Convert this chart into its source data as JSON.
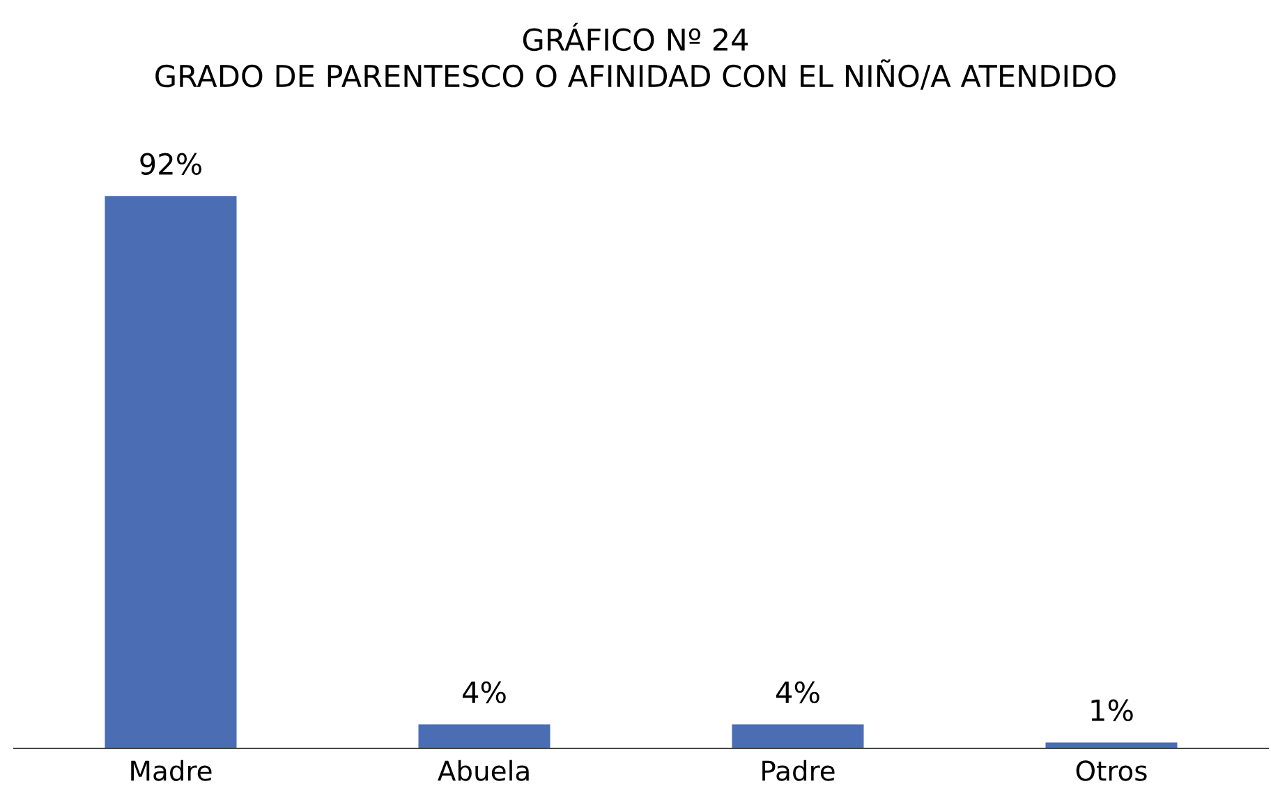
{
  "chart_data": {
    "type": "bar",
    "title": "GRÁFICO Nº 24\nGRADO DE PARENTESCO O AFINIDAD CON EL NIÑO/A ATENDIDO",
    "categories": [
      "Madre",
      "Abuela",
      "Padre",
      "Otros"
    ],
    "values": [
      92,
      4,
      4,
      1
    ],
    "value_labels": [
      "92%",
      "4%",
      "4%",
      "1%"
    ],
    "color": "#4a6db3",
    "grid": false,
    "legend": false,
    "tick_labels": "x"
  }
}
